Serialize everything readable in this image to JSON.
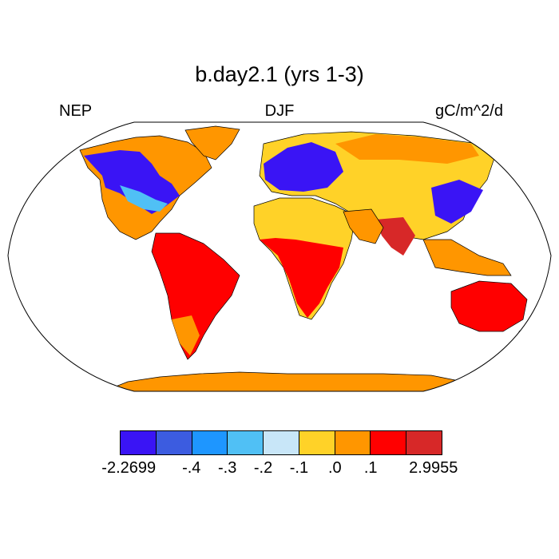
{
  "title": "b.day2.1 (yrs 1-3)",
  "left_label": "NEP",
  "center_label": "DJF",
  "right_label": "gC/m^2/d",
  "colorbar": {
    "colors": [
      "#3a14f5",
      "#3c5ce0",
      "#1e96ff",
      "#50c0f5",
      "#c8e6f8",
      "#ffd228",
      "#ff9600",
      "#ff0000",
      "#d72828"
    ],
    "labels": [
      "-2.2699",
      "-.4",
      "-.3",
      "-.2",
      "-.1",
      ".0",
      ".1",
      "2.9955"
    ]
  },
  "map": {
    "projection": "Robinson",
    "ocean_color": "#ffffff",
    "land_outline_color": "#000000"
  }
}
